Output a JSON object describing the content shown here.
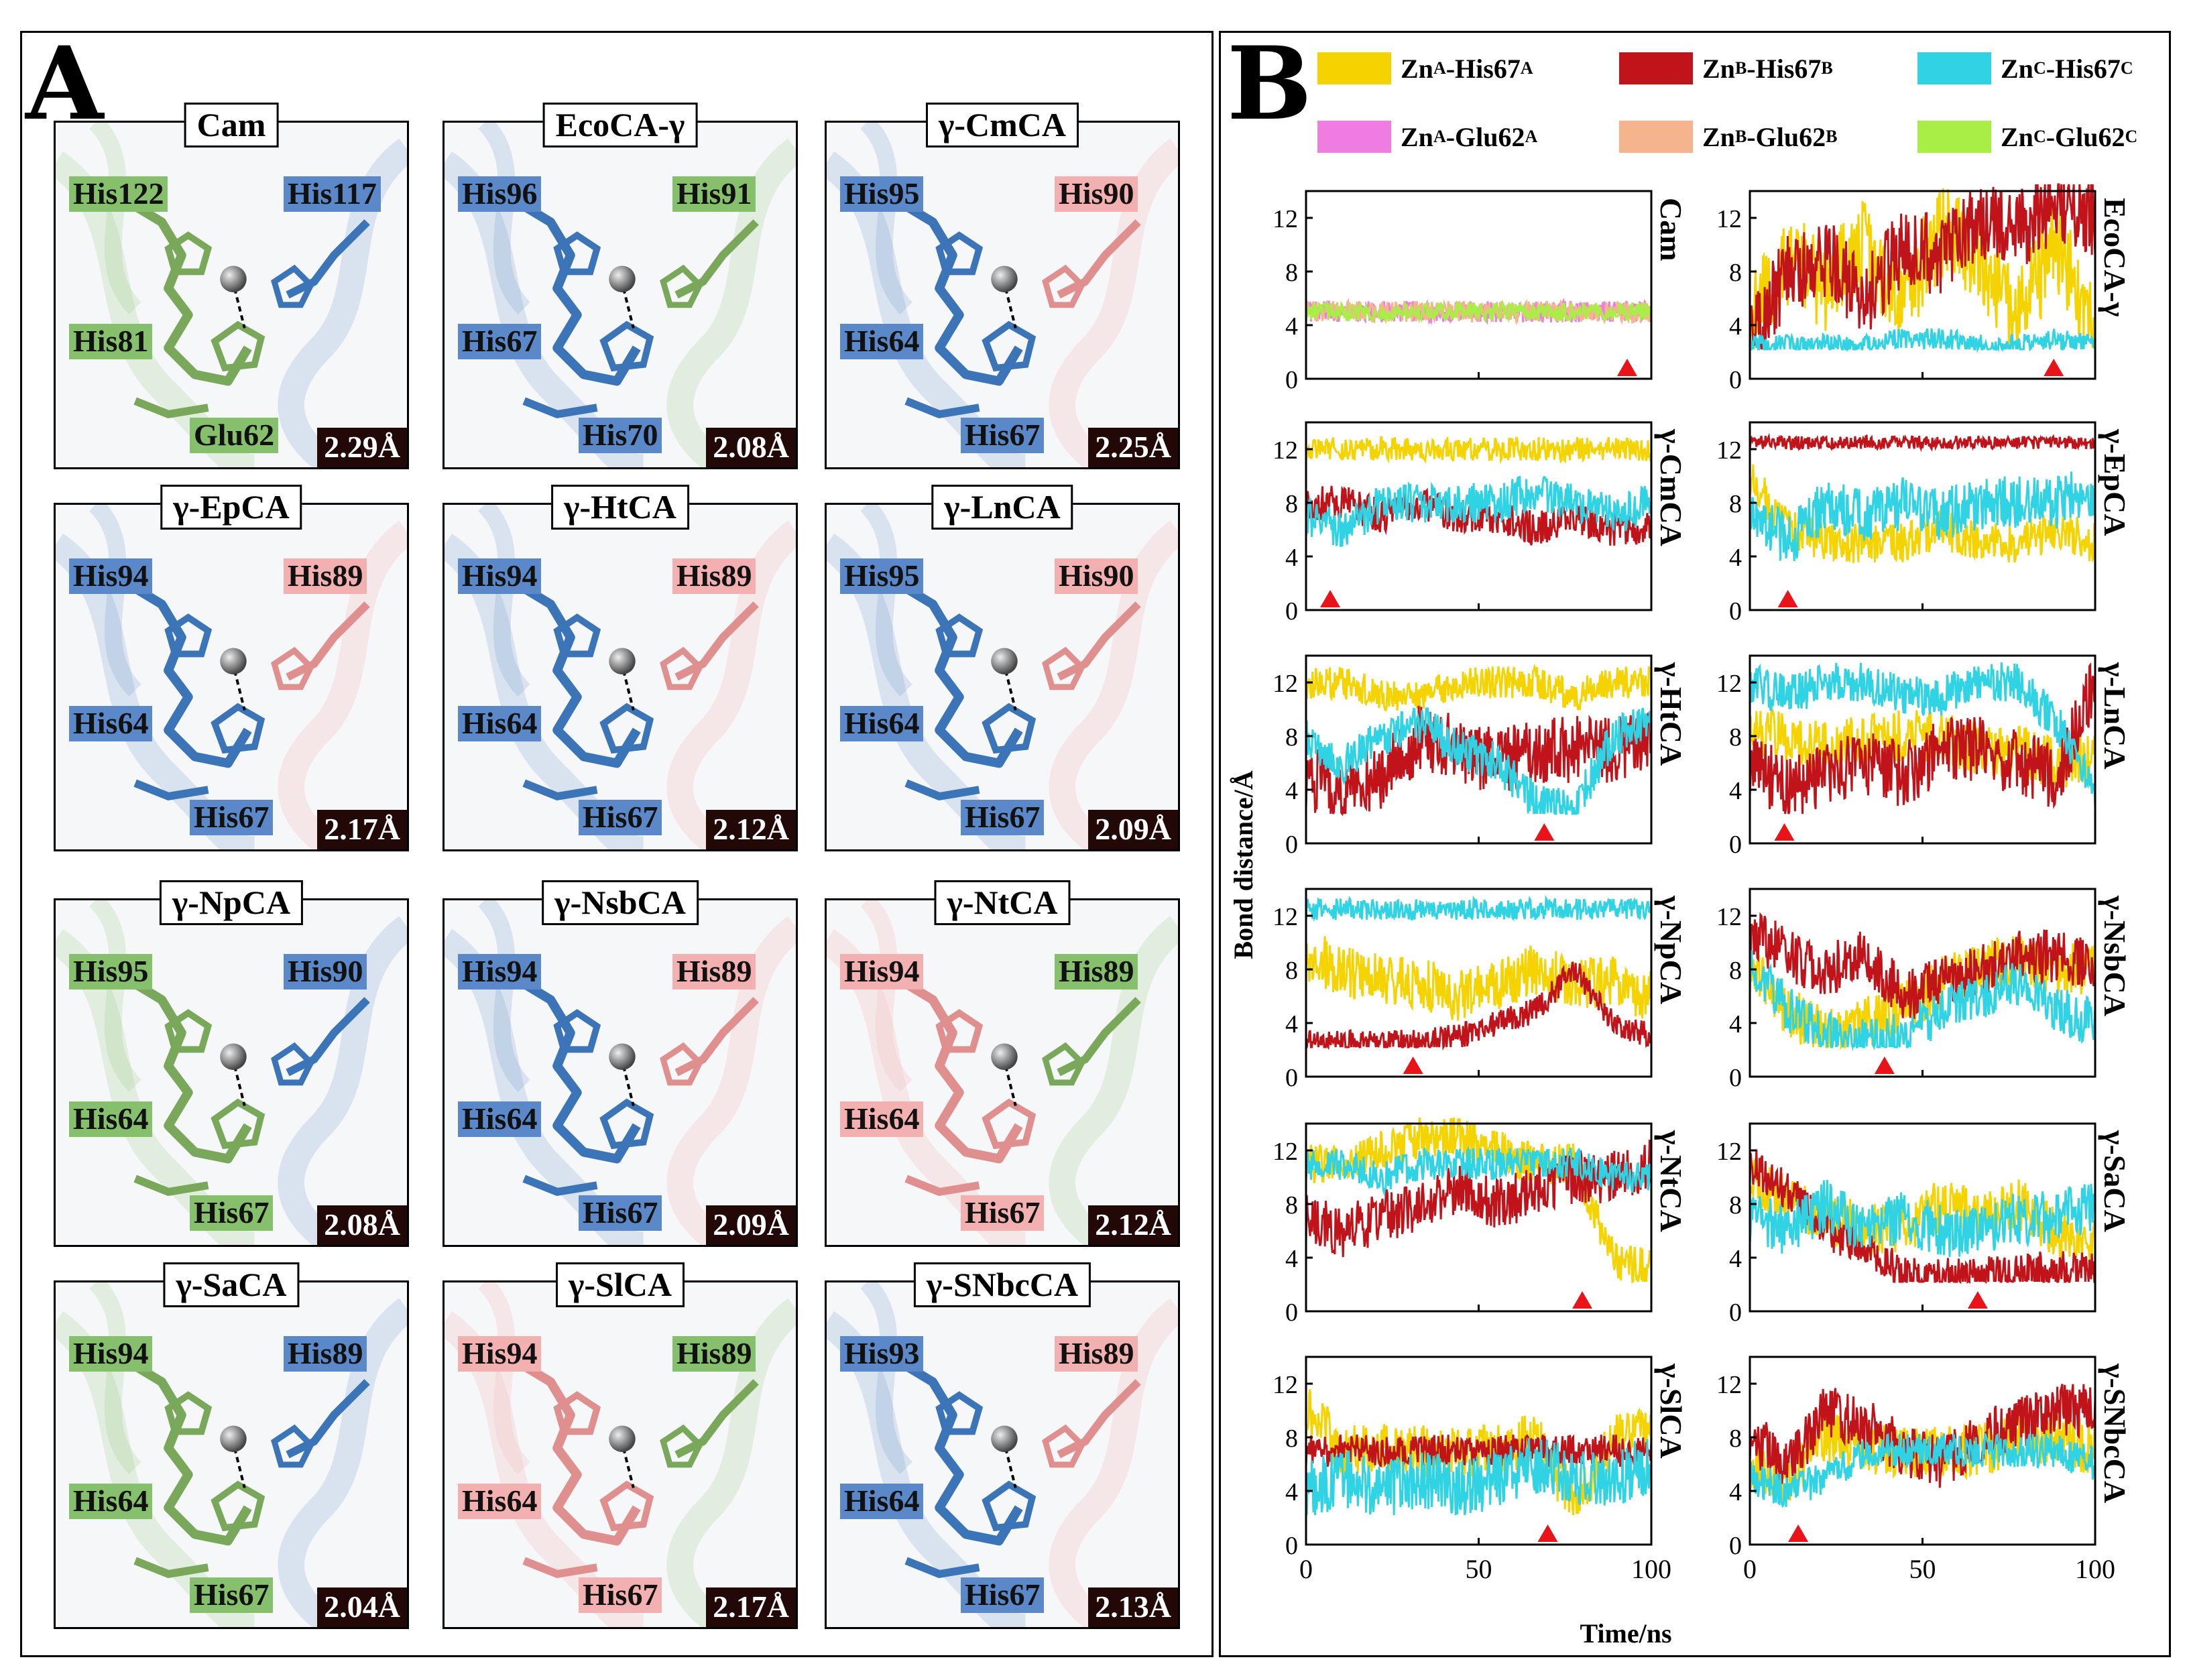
{
  "panel_a": {
    "letter": "A",
    "panels": [
      {
        "title": "Cam",
        "distance": "2.29Å",
        "labels": [
          {
            "text": "His122",
            "color": "green"
          },
          {
            "text": "His117",
            "color": "blue"
          },
          {
            "text": "His81",
            "color": "green"
          },
          {
            "text": "Glu62",
            "color": "green"
          }
        ]
      },
      {
        "title": "EcoCA-γ",
        "distance": "2.08Å",
        "labels": [
          {
            "text": "His96",
            "color": "blue"
          },
          {
            "text": "His91",
            "color": "green"
          },
          {
            "text": "His67",
            "color": "blue"
          },
          {
            "text": "His70",
            "color": "blue"
          }
        ]
      },
      {
        "title": "γ-CmCA",
        "distance": "2.25Å",
        "labels": [
          {
            "text": "His95",
            "color": "blue"
          },
          {
            "text": "His90",
            "color": "pink"
          },
          {
            "text": "His64",
            "color": "blue"
          },
          {
            "text": "His67",
            "color": "blue"
          }
        ]
      },
      {
        "title": "γ-EpCA",
        "distance": "2.17Å",
        "labels": [
          {
            "text": "His94",
            "color": "blue"
          },
          {
            "text": "His89",
            "color": "pink"
          },
          {
            "text": "His64",
            "color": "blue"
          },
          {
            "text": "His67",
            "color": "blue"
          }
        ]
      },
      {
        "title": "γ-HtCA",
        "distance": "2.12Å",
        "labels": [
          {
            "text": "His94",
            "color": "blue"
          },
          {
            "text": "His89",
            "color": "pink"
          },
          {
            "text": "His64",
            "color": "blue"
          },
          {
            "text": "His67",
            "color": "blue"
          }
        ]
      },
      {
        "title": "γ-LnCA",
        "distance": "2.09Å",
        "labels": [
          {
            "text": "His95",
            "color": "blue"
          },
          {
            "text": "His90",
            "color": "pink"
          },
          {
            "text": "His64",
            "color": "blue"
          },
          {
            "text": "His67",
            "color": "blue"
          }
        ]
      },
      {
        "title": "γ-NpCA",
        "distance": "2.08Å",
        "labels": [
          {
            "text": "His95",
            "color": "green"
          },
          {
            "text": "His90",
            "color": "blue"
          },
          {
            "text": "His64",
            "color": "green"
          },
          {
            "text": "His67",
            "color": "green"
          }
        ]
      },
      {
        "title": "γ-NsbCA",
        "distance": "2.09Å",
        "labels": [
          {
            "text": "His94",
            "color": "blue"
          },
          {
            "text": "His89",
            "color": "pink"
          },
          {
            "text": "His64",
            "color": "blue"
          },
          {
            "text": "His67",
            "color": "blue"
          }
        ]
      },
      {
        "title": "γ-NtCA",
        "distance": "2.12Å",
        "labels": [
          {
            "text": "His94",
            "color": "pink"
          },
          {
            "text": "His89",
            "color": "green"
          },
          {
            "text": "His64",
            "color": "pink"
          },
          {
            "text": "His67",
            "color": "pink"
          }
        ]
      },
      {
        "title": "γ-SaCA",
        "distance": "2.04Å",
        "labels": [
          {
            "text": "His94",
            "color": "green"
          },
          {
            "text": "His89",
            "color": "blue"
          },
          {
            "text": "His64",
            "color": "green"
          },
          {
            "text": "His67",
            "color": "green"
          }
        ]
      },
      {
        "title": "γ-SlCA",
        "distance": "2.17Å",
        "labels": [
          {
            "text": "His94",
            "color": "pink"
          },
          {
            "text": "His89",
            "color": "green"
          },
          {
            "text": "His64",
            "color": "pink"
          },
          {
            "text": "His67",
            "color": "pink"
          }
        ]
      },
      {
        "title": "γ-SNbcCA",
        "distance": "2.13Å",
        "labels": [
          {
            "text": "His93",
            "color": "blue"
          },
          {
            "text": "His89",
            "color": "pink"
          },
          {
            "text": "His64",
            "color": "blue"
          },
          {
            "text": "His67",
            "color": "blue"
          }
        ]
      }
    ]
  },
  "panel_b": {
    "letter": "B",
    "legend": [
      {
        "zn": "Zn",
        "zn_sup": "A",
        "res": "-His67",
        "res_sup": "A",
        "color": "#f5d300"
      },
      {
        "zn": "Zn",
        "zn_sup": "B",
        "res": "-His67",
        "res_sup": "B",
        "color": "#c0141a"
      },
      {
        "zn": "Zn",
        "zn_sup": "C",
        "res": "-His67",
        "res_sup": "C",
        "color": "#2fd3e3"
      },
      {
        "zn": "Zn",
        "zn_sup": "A",
        "res": "-Glu62",
        "res_sup": "A",
        "color": "#ef7ce0"
      },
      {
        "zn": "Zn",
        "zn_sup": "B",
        "res": "-Glu62",
        "res_sup": "B",
        "color": "#f6b48e"
      },
      {
        "zn": "Zn",
        "zn_sup": "C",
        "res": "-Glu62",
        "res_sup": "C",
        "color": "#a8ee46"
      }
    ],
    "ylabel": "Bond distance/Å",
    "xlabel": "Time/ns",
    "x_ticks": [
      "0",
      "50",
      "100"
    ],
    "y_ticks": [
      "0",
      "4",
      "8",
      "12"
    ]
  },
  "chart_data": [
    {
      "type": "line",
      "title": "Cam",
      "xlabel": "Time/ns",
      "ylabel": "Bond distance/Å",
      "xlim": [
        0,
        100
      ],
      "ylim": [
        0,
        14
      ],
      "marker_time": 93,
      "series": [
        {
          "name": "ZnA-Glu62A",
          "mean": [
            5,
            5,
            5,
            5,
            5,
            5,
            5,
            5,
            5,
            5
          ],
          "noise": 0.8
        },
        {
          "name": "ZnB-Glu62B",
          "mean": [
            5,
            5,
            5,
            5,
            5,
            5,
            5,
            5,
            5,
            5
          ],
          "noise": 0.8
        },
        {
          "name": "ZnC-Glu62C",
          "mean": [
            5,
            5,
            5,
            5,
            5,
            5,
            5,
            5,
            5,
            5
          ],
          "noise": 0.7
        }
      ]
    },
    {
      "type": "line",
      "title": "EcoCA-γ",
      "xlabel": "Time/ns",
      "ylabel": "Bond distance/Å",
      "xlim": [
        0,
        100
      ],
      "ylim": [
        0,
        14
      ],
      "marker_time": 88,
      "series": [
        {
          "name": "ZnA-His67A",
          "mean": [
            4,
            9,
            7,
            10,
            6,
            11,
            9,
            5,
            10,
            4
          ],
          "noise": 3.5
        },
        {
          "name": "ZnB-His67B",
          "mean": [
            3,
            8,
            9,
            6,
            10,
            9,
            12,
            11,
            13,
            12
          ],
          "noise": 3
        },
        {
          "name": "ZnC-His67C",
          "mean": [
            2.5,
            2.5,
            2.5,
            2.5,
            3,
            3,
            2.5,
            2.5,
            3,
            2.5
          ],
          "noise": 0.8
        }
      ]
    },
    {
      "type": "line",
      "title": "γ-CmCA",
      "xlabel": "Time/ns",
      "ylabel": "Bond distance/Å",
      "xlim": [
        0,
        100
      ],
      "ylim": [
        0,
        14
      ],
      "marker_time": 7,
      "series": [
        {
          "name": "ZnA-His67A",
          "mean": [
            12,
            12,
            12,
            12,
            12,
            12,
            12,
            12,
            12,
            12
          ],
          "noise": 0.9
        },
        {
          "name": "ZnB-His67B",
          "mean": [
            8,
            8,
            7,
            8,
            7,
            7,
            6,
            7,
            6,
            6
          ],
          "noise": 1.3
        },
        {
          "name": "ZnC-His67C",
          "mean": [
            7,
            6,
            8,
            8,
            8,
            8,
            9,
            8,
            7,
            8
          ],
          "noise": 1.5
        }
      ]
    },
    {
      "type": "line",
      "title": "γ-EpCA",
      "xlabel": "Time/ns",
      "ylabel": "Bond distance/Å",
      "xlim": [
        0,
        100
      ],
      "ylim": [
        0,
        14
      ],
      "marker_time": 11,
      "series": [
        {
          "name": "ZnA-His67A",
          "mean": [
            10,
            6,
            5,
            5,
            5,
            6,
            5,
            5,
            6,
            5
          ],
          "noise": 1.5
        },
        {
          "name": "ZnB-His67B",
          "mean": [
            12.5,
            12.5,
            12.5,
            12.5,
            12.5,
            12.5,
            12.5,
            12.5,
            12.5,
            12.5
          ],
          "noise": 0.5
        },
        {
          "name": "ZnC-His67C",
          "mean": [
            8,
            5,
            8,
            7,
            8,
            7,
            8,
            8,
            8,
            9
          ],
          "noise": 2
        }
      ]
    },
    {
      "type": "line",
      "title": "γ-HtCA",
      "xlabel": "Time/ns",
      "ylabel": "Bond distance/Å",
      "xlim": [
        0,
        100
      ],
      "ylim": [
        0,
        14
      ],
      "marker_time": 69,
      "series": [
        {
          "name": "ZnA-His67A",
          "mean": [
            12,
            12,
            11,
            11,
            12,
            12,
            12,
            11,
            12,
            12
          ],
          "noise": 1.2
        },
        {
          "name": "ZnB-His67B",
          "mean": [
            5,
            4,
            5,
            8,
            7,
            6,
            7,
            7,
            7,
            8
          ],
          "noise": 2.5
        },
        {
          "name": "ZnC-His67C",
          "mean": [
            8,
            6,
            8,
            9,
            7,
            6,
            3,
            2.5,
            8,
            9
          ],
          "noise": 1.5
        }
      ]
    },
    {
      "type": "line",
      "title": "γ-LnCA",
      "xlabel": "Time/ns",
      "ylabel": "Bond distance/Å",
      "xlim": [
        0,
        100
      ],
      "ylim": [
        0,
        14
      ],
      "marker_time": 10,
      "series": [
        {
          "name": "ZnA-His67A",
          "mean": [
            8,
            8,
            7,
            8,
            8,
            8,
            7,
            7,
            6,
            6
          ],
          "noise": 2
        },
        {
          "name": "ZnB-His67B",
          "mean": [
            6,
            4,
            5,
            6,
            5,
            7,
            7,
            6,
            5,
            12
          ],
          "noise": 2.5
        },
        {
          "name": "ZnC-His67C",
          "mean": [
            12,
            11,
            12,
            12,
            11,
            11,
            12,
            12,
            9,
            4
          ],
          "noise": 1.5
        }
      ]
    },
    {
      "type": "line",
      "title": "γ-NpCA",
      "xlabel": "Time/ns",
      "ylabel": "Bond distance/Å",
      "xlim": [
        0,
        100
      ],
      "ylim": [
        0,
        14
      ],
      "marker_time": 31,
      "series": [
        {
          "name": "ZnA-His67A",
          "mean": [
            9,
            8,
            7,
            7,
            6,
            7,
            8,
            7,
            7,
            6
          ],
          "noise": 2
        },
        {
          "name": "ZnB-His67B",
          "mean": [
            2.5,
            2.5,
            2.5,
            2.5,
            3,
            4,
            5,
            8,
            4,
            3
          ],
          "noise": 1
        },
        {
          "name": "ZnC-His67C",
          "mean": [
            12.5,
            12.5,
            12.5,
            12.5,
            12.5,
            12.5,
            12.5,
            12.5,
            12.5,
            12.5
          ],
          "noise": 0.8
        }
      ]
    },
    {
      "type": "line",
      "title": "γ-NsbCA",
      "xlabel": "Time/ns",
      "ylabel": "Bond distance/Å",
      "xlim": [
        0,
        100
      ],
      "ylim": [
        0,
        14
      ],
      "marker_time": 39,
      "series": [
        {
          "name": "ZnA-His67A",
          "mean": [
            8,
            5,
            3,
            4,
            5,
            7,
            8,
            9,
            8,
            8
          ],
          "noise": 2
        },
        {
          "name": "ZnB-His67B",
          "mean": [
            11,
            9,
            8,
            9,
            6,
            7,
            8,
            9,
            9,
            8
          ],
          "noise": 2
        },
        {
          "name": "ZnC-His67C",
          "mean": [
            8,
            5,
            3,
            2.5,
            3,
            5,
            6,
            7,
            5,
            4
          ],
          "noise": 1.8
        }
      ]
    },
    {
      "type": "line",
      "title": "γ-NtCA",
      "xlabel": "Time/ns",
      "ylabel": "Bond distance/Å",
      "xlim": [
        0,
        100
      ],
      "ylim": [
        0,
        14
      ],
      "marker_time": 80,
      "series": [
        {
          "name": "ZnA-His67A",
          "mean": [
            11,
            11,
            12,
            13,
            13,
            12,
            11,
            11,
            4,
            3
          ],
          "noise": 1.5
        },
        {
          "name": "ZnB-His67B",
          "mean": [
            7,
            6,
            7,
            8,
            9,
            8,
            9,
            10,
            10,
            11
          ],
          "noise": 2
        },
        {
          "name": "ZnC-His67C",
          "mean": [
            11,
            11,
            10,
            11,
            11,
            11,
            11,
            11,
            10,
            10
          ],
          "noise": 1.2
        }
      ]
    },
    {
      "type": "line",
      "title": "γ-SaCA",
      "xlabel": "Time/ns",
      "ylabel": "Bond distance/Å",
      "xlim": [
        0,
        100
      ],
      "ylim": [
        0,
        14
      ],
      "marker_time": 66,
      "series": [
        {
          "name": "ZnA-His67A",
          "mean": [
            10,
            8,
            7,
            6,
            6,
            8,
            7,
            8,
            6,
            5
          ],
          "noise": 2
        },
        {
          "name": "ZnB-His67B",
          "mean": [
            11,
            9,
            6,
            5,
            2.5,
            2.5,
            2.5,
            3,
            3,
            3
          ],
          "noise": 1.5
        },
        {
          "name": "ZnC-His67C",
          "mean": [
            7,
            6,
            8,
            6,
            7,
            6,
            6,
            7,
            7,
            8
          ],
          "noise": 2
        }
      ]
    },
    {
      "type": "line",
      "title": "γ-SlCA",
      "xlabel": "Time/ns",
      "ylabel": "Bond distance/Å",
      "xlim": [
        0,
        100
      ],
      "ylim": [
        0,
        14
      ],
      "marker_time": 70,
      "series": [
        {
          "name": "ZnA-His67A",
          "mean": [
            10,
            7,
            7,
            7,
            7,
            7,
            8,
            3,
            8,
            8
          ],
          "noise": 2
        },
        {
          "name": "ZnB-His67B",
          "mean": [
            7,
            7,
            7,
            7,
            7,
            7,
            7,
            7,
            7,
            7
          ],
          "noise": 1.2
        },
        {
          "name": "ZnC-His67C",
          "mean": [
            4,
            5,
            4,
            5,
            4,
            5,
            6,
            5,
            5,
            6
          ],
          "noise": 2.2
        }
      ]
    },
    {
      "type": "line",
      "title": "γ-SNbcCA",
      "xlabel": "Time/ns",
      "ylabel": "Bond distance/Å",
      "xlim": [
        0,
        100
      ],
      "ylim": [
        0,
        14
      ],
      "marker_time": 14,
      "series": [
        {
          "name": "ZnA-His67A",
          "mean": [
            6,
            5,
            8,
            7,
            7,
            7,
            7,
            8,
            8,
            7
          ],
          "noise": 2
        },
        {
          "name": "ZnB-His67B",
          "mean": [
            8,
            6,
            10,
            9,
            7,
            6,
            8,
            9,
            10,
            10
          ],
          "noise": 2
        },
        {
          "name": "ZnC-His67C",
          "mean": [
            5,
            4,
            5,
            7,
            7,
            7,
            7,
            7,
            7,
            6
          ],
          "noise": 1.3
        }
      ]
    }
  ]
}
